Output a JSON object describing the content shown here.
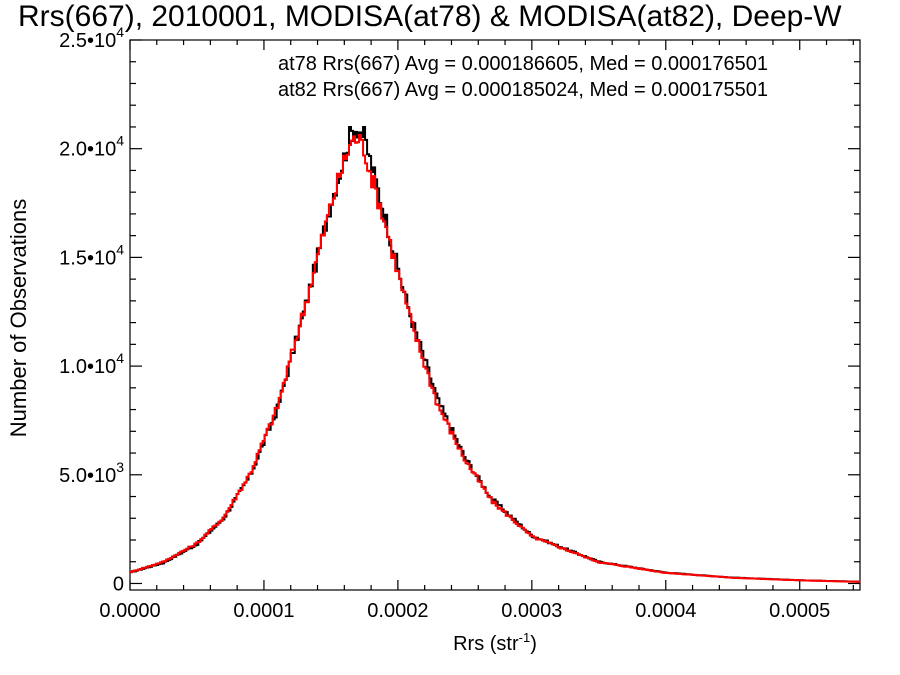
{
  "chart_data": {
    "type": "line",
    "title": "Rrs(667), 2010001, MODISA(at78) & MODISA(at82), Deep-W",
    "xlabel": "Rrs (str",
    "xlabel_sup": "-1",
    "xlabel_close": ")",
    "ylabel": "Number of Observations",
    "xlim": [
      0.0,
      0.000545
    ],
    "ylim": [
      -300,
      25000
    ],
    "x_ticks": [
      {
        "value": 0.0,
        "label": "0.0000"
      },
      {
        "value": 0.0001,
        "label": "0.0001"
      },
      {
        "value": 0.0002,
        "label": "0.0002"
      },
      {
        "value": 0.0003,
        "label": "0.0003"
      },
      {
        "value": 0.0004,
        "label": "0.0004"
      },
      {
        "value": 0.0005,
        "label": "0.0005"
      }
    ],
    "y_ticks": [
      {
        "value": 0,
        "mant": "0",
        "exp": ""
      },
      {
        "value": 5000,
        "mant": "5.0•10",
        "exp": "3"
      },
      {
        "value": 10000,
        "mant": "1.0•10",
        "exp": "4"
      },
      {
        "value": 15000,
        "mant": "1.5•10",
        "exp": "4"
      },
      {
        "value": 20000,
        "mant": "2.0•10",
        "exp": "4"
      },
      {
        "value": 25000,
        "mant": "2.5•10",
        "exp": "4"
      }
    ],
    "legend_placement": "top-right",
    "series": [
      {
        "name": "at78",
        "color": "#000000",
        "label": "at78 Rrs(667) Avg = 0.000186605, Med = 0.000176501",
        "points": [
          [
            0.0,
            500
          ],
          [
            2.5e-05,
            950
          ],
          [
            5e-05,
            1800
          ],
          [
            7e-05,
            3000
          ],
          [
            9e-05,
            5000
          ],
          [
            0.00011,
            8000
          ],
          [
            0.00013,
            12500
          ],
          [
            0.00015,
            17500
          ],
          [
            0.00016,
            19600
          ],
          [
            0.000165,
            20700
          ],
          [
            0.00017,
            21000
          ],
          [
            0.000175,
            20500
          ],
          [
            0.00018,
            19300
          ],
          [
            0.00019,
            17000
          ],
          [
            0.0002,
            14500
          ],
          [
            0.00021,
            12200
          ],
          [
            0.00022,
            10300
          ],
          [
            0.00023,
            8400
          ],
          [
            0.00025,
            5800
          ],
          [
            0.00027,
            3900
          ],
          [
            0.0003,
            2200
          ],
          [
            0.00035,
            1000
          ],
          [
            0.0004,
            500
          ],
          [
            0.00045,
            270
          ],
          [
            0.0005,
            150
          ],
          [
            0.000545,
            80
          ]
        ]
      },
      {
        "name": "at82",
        "color": "#ff0000",
        "label": "at82 Rrs(667) Avg = 0.000185024, Med = 0.000175501",
        "points": [
          [
            0.0,
            520
          ],
          [
            2.5e-05,
            1000
          ],
          [
            5e-05,
            1850
          ],
          [
            7e-05,
            3050
          ],
          [
            9e-05,
            5100
          ],
          [
            0.00011,
            8100
          ],
          [
            0.00013,
            12600
          ],
          [
            0.00015,
            17400
          ],
          [
            0.00016,
            19400
          ],
          [
            0.000165,
            20300
          ],
          [
            0.00017,
            20500
          ],
          [
            0.000175,
            20000
          ],
          [
            0.00018,
            18800
          ],
          [
            0.00019,
            16700
          ],
          [
            0.0002,
            14300
          ],
          [
            0.00021,
            12000
          ],
          [
            0.00022,
            10100
          ],
          [
            0.00023,
            8200
          ],
          [
            0.00025,
            5700
          ],
          [
            0.00027,
            3800
          ],
          [
            0.0003,
            2150
          ],
          [
            0.00035,
            980
          ],
          [
            0.0004,
            490
          ],
          [
            0.00045,
            265
          ],
          [
            0.0005,
            145
          ],
          [
            0.000545,
            75
          ]
        ]
      }
    ]
  }
}
